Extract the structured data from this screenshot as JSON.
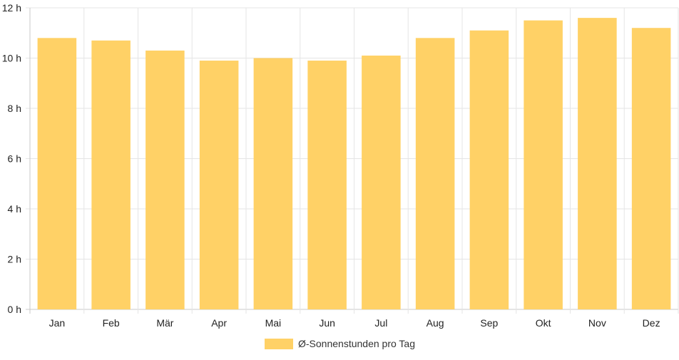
{
  "chart_data": {
    "type": "bar",
    "categories": [
      "Jan",
      "Feb",
      "Mär",
      "Apr",
      "Mai",
      "Jun",
      "Jul",
      "Aug",
      "Sep",
      "Okt",
      "Nov",
      "Dez"
    ],
    "series": [
      {
        "name": "Ø-Sonnenstunden pro Tag",
        "values": [
          10.8,
          10.7,
          10.3,
          9.9,
          10.0,
          9.9,
          10.1,
          10.8,
          11.1,
          11.5,
          11.6,
          11.2
        ],
        "color": "#ffd166"
      }
    ],
    "y_ticks": [
      "0 h",
      "2 h",
      "4 h",
      "6 h",
      "8 h",
      "10 h",
      "12 h"
    ],
    "ylim": [
      0,
      12
    ],
    "grid": true,
    "legend_position": "bottom-center"
  }
}
